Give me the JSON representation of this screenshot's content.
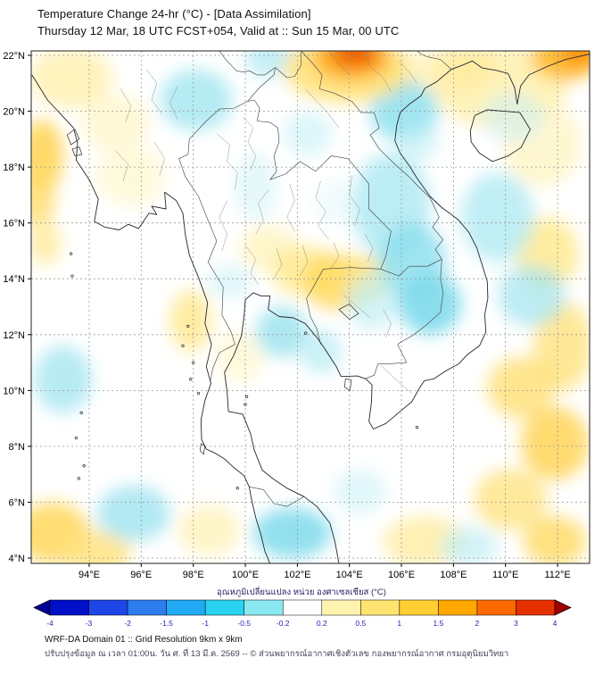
{
  "header": {
    "line1": "Temperature Change 24-hr (°C) - [Data Assimilation]",
    "line2": "Thursday 12 Mar, 18 UTC FCST+054, Valid at :: Sun 15 Mar, 00 UTC"
  },
  "axes": {
    "lat_ticks": [
      {
        "v": 22,
        "label": "22°N"
      },
      {
        "v": 20,
        "label": "20°N"
      },
      {
        "v": 18,
        "label": "18°N"
      },
      {
        "v": 16,
        "label": "16°N"
      },
      {
        "v": 14,
        "label": "14°N"
      },
      {
        "v": 12,
        "label": "12°N"
      },
      {
        "v": 10,
        "label": "10°N"
      },
      {
        "v": 8,
        "label": "8°N"
      },
      {
        "v": 6,
        "label": "6°N"
      },
      {
        "v": 4,
        "label": "4°N"
      }
    ],
    "lon_ticks": [
      {
        "v": 94,
        "label": "94°E"
      },
      {
        "v": 96,
        "label": "96°E"
      },
      {
        "v": 98,
        "label": "98°E"
      },
      {
        "v": 100,
        "label": "100°E"
      },
      {
        "v": 102,
        "label": "102°E"
      },
      {
        "v": 104,
        "label": "104°E"
      },
      {
        "v": 106,
        "label": "106°E"
      },
      {
        "v": 108,
        "label": "108°E"
      },
      {
        "v": 110,
        "label": "110°E"
      },
      {
        "v": 112,
        "label": "112°E"
      }
    ]
  },
  "map": {
    "anomalies": [
      {
        "lon": 93.3,
        "lat": 21.2,
        "rx": 1.6,
        "ry": 1.1,
        "c": "#fff1b3",
        "o": 0.85
      },
      {
        "lon": 95.0,
        "lat": 19.6,
        "rx": 1.3,
        "ry": 1.0,
        "c": "#fff6cc",
        "o": 0.8
      },
      {
        "lon": 109.8,
        "lat": 20.9,
        "rx": 2.6,
        "ry": 1.5,
        "c": "#ffefa8",
        "o": 0.8
      },
      {
        "lon": 111.4,
        "lat": 18.8,
        "rx": 1.5,
        "ry": 1.5,
        "c": "#fff3bb",
        "o": 0.7
      },
      {
        "lon": 108.3,
        "lat": 21.6,
        "rx": 1.3,
        "ry": 0.8,
        "c": "#ffeb9e",
        "o": 0.8
      },
      {
        "lon": 106.6,
        "lat": 21.3,
        "rx": 1.4,
        "ry": 0.8,
        "c": "#fff1b0",
        "o": 0.7
      },
      {
        "lon": 95.6,
        "lat": 17.7,
        "rx": 1.3,
        "ry": 1.1,
        "c": "#fff6cc",
        "o": 0.7
      },
      {
        "lon": 100.9,
        "lat": 15.1,
        "rx": 1.1,
        "ry": 0.8,
        "c": "#fff3b8",
        "o": 0.75
      },
      {
        "lon": 99.8,
        "lat": 11.2,
        "rx": 0.9,
        "ry": 0.9,
        "c": "#fff6cc",
        "o": 0.7
      },
      {
        "lon": 97.9,
        "lat": 12.5,
        "rx": 0.8,
        "ry": 1.1,
        "c": "#ffe98c",
        "o": 0.8
      },
      {
        "lon": 102.3,
        "lat": 14.3,
        "rx": 1.3,
        "ry": 0.9,
        "c": "#ffea8f",
        "o": 0.85
      },
      {
        "lon": 103.6,
        "lat": 13.9,
        "rx": 1.4,
        "ry": 1.0,
        "c": "#ffd95e",
        "o": 0.85
      },
      {
        "lon": 104.7,
        "lat": 14.0,
        "rx": 1.0,
        "ry": 0.8,
        "c": "#ffe47d",
        "o": 0.8
      },
      {
        "lon": 92.2,
        "lat": 18.4,
        "rx": 0.8,
        "ry": 1.3,
        "c": "#ffd24d",
        "o": 0.85
      },
      {
        "lon": 92.0,
        "lat": 16.9,
        "rx": 0.7,
        "ry": 1.0,
        "c": "#ffdc6b",
        "o": 0.8
      },
      {
        "lon": 92.3,
        "lat": 15.3,
        "rx": 0.6,
        "ry": 0.8,
        "c": "#ffe88f",
        "o": 0.75
      },
      {
        "lon": 92.6,
        "lat": 4.9,
        "rx": 1.4,
        "ry": 1.1,
        "c": "#ffd75c",
        "o": 0.85
      },
      {
        "lon": 94.3,
        "lat": 4.2,
        "rx": 1.3,
        "ry": 0.8,
        "c": "#ffe27a",
        "o": 0.8
      },
      {
        "lon": 98.6,
        "lat": 5.0,
        "rx": 1.2,
        "ry": 0.9,
        "c": "#fff1b0",
        "o": 0.7
      },
      {
        "lon": 111.6,
        "lat": 14.9,
        "rx": 1.2,
        "ry": 1.3,
        "c": "#ffe888",
        "o": 0.8
      },
      {
        "lon": 112.2,
        "lat": 11.6,
        "rx": 1.1,
        "ry": 1.6,
        "c": "#ffe27a",
        "o": 0.8
      },
      {
        "lon": 110.6,
        "lat": 10.1,
        "rx": 1.3,
        "ry": 1.1,
        "c": "#ffdf73",
        "o": 0.8
      },
      {
        "lon": 111.9,
        "lat": 8.1,
        "rx": 1.3,
        "ry": 1.3,
        "c": "#ffd24d",
        "o": 0.8
      },
      {
        "lon": 110.2,
        "lat": 6.1,
        "rx": 1.4,
        "ry": 1.1,
        "c": "#ffe483",
        "o": 0.8
      },
      {
        "lon": 111.9,
        "lat": 4.6,
        "rx": 1.2,
        "ry": 0.9,
        "c": "#ffda60",
        "o": 0.8
      },
      {
        "lon": 106.9,
        "lat": 4.6,
        "rx": 1.6,
        "ry": 0.9,
        "c": "#ffeb9a",
        "o": 0.75
      },
      {
        "lon": 98.1,
        "lat": 20.4,
        "rx": 1.4,
        "ry": 1.1,
        "c": "#a8e7f1",
        "o": 0.85
      },
      {
        "lon": 100.9,
        "lat": 21.9,
        "rx": 0.9,
        "ry": 0.7,
        "c": "#b5ebf3",
        "o": 0.8
      },
      {
        "lon": 106.1,
        "lat": 20.0,
        "rx": 1.3,
        "ry": 1.1,
        "c": "#8edfee",
        "o": 0.85
      },
      {
        "lon": 102.4,
        "lat": 19.2,
        "rx": 0.9,
        "ry": 0.8,
        "c": "#cdf2f7",
        "o": 0.7
      },
      {
        "lon": 100.4,
        "lat": 17.3,
        "rx": 0.8,
        "ry": 1.2,
        "c": "#d5f4f8",
        "o": 0.65
      },
      {
        "lon": 105.6,
        "lat": 16.6,
        "rx": 1.5,
        "ry": 1.9,
        "c": "#abe8f2",
        "o": 0.8
      },
      {
        "lon": 106.4,
        "lat": 14.6,
        "rx": 1.3,
        "ry": 1.4,
        "c": "#8edfee",
        "o": 0.85
      },
      {
        "lon": 107.1,
        "lat": 13.1,
        "rx": 1.2,
        "ry": 1.1,
        "c": "#7fdaec",
        "o": 0.9
      },
      {
        "lon": 104.9,
        "lat": 13.2,
        "rx": 1.0,
        "ry": 1.0,
        "c": "#bfeef5",
        "o": 0.7
      },
      {
        "lon": 101.4,
        "lat": 12.1,
        "rx": 1.0,
        "ry": 0.9,
        "c": "#9fe4ef",
        "o": 0.85
      },
      {
        "lon": 102.9,
        "lat": 11.4,
        "rx": 0.8,
        "ry": 0.8,
        "c": "#b5ebf3",
        "o": 0.7
      },
      {
        "lon": 99.4,
        "lat": 13.9,
        "rx": 0.9,
        "ry": 0.6,
        "c": "#cdf2f7",
        "o": 0.6
      },
      {
        "lon": 93.0,
        "lat": 10.4,
        "rx": 1.1,
        "ry": 1.2,
        "c": "#a5e6f0",
        "o": 0.8
      },
      {
        "lon": 95.7,
        "lat": 5.6,
        "rx": 1.4,
        "ry": 1.0,
        "c": "#9fe4ef",
        "o": 0.8
      },
      {
        "lon": 101.8,
        "lat": 4.9,
        "rx": 1.5,
        "ry": 0.9,
        "c": "#7fdaec",
        "o": 0.85
      },
      {
        "lon": 104.4,
        "lat": 6.4,
        "rx": 1.0,
        "ry": 0.8,
        "c": "#cdf2f7",
        "o": 0.6
      },
      {
        "lon": 109.7,
        "lat": 16.2,
        "rx": 1.4,
        "ry": 1.6,
        "c": "#abe8f2",
        "o": 0.75
      },
      {
        "lon": 111.0,
        "lat": 13.4,
        "rx": 1.3,
        "ry": 1.1,
        "c": "#9fe4ef",
        "o": 0.7
      },
      {
        "lon": 110.3,
        "lat": 19.8,
        "rx": 1.2,
        "ry": 0.9,
        "c": "#cdf2f7",
        "o": 0.6
      },
      {
        "lon": 106.6,
        "lat": 18.9,
        "rx": 0.8,
        "ry": 0.7,
        "c": "#bfeef5",
        "o": 0.6
      },
      {
        "lon": 108.6,
        "lat": 4.4,
        "rx": 1.1,
        "ry": 0.7,
        "c": "#bfeef5",
        "o": 0.7
      },
      {
        "lon": 103.5,
        "lat": 16.7,
        "rx": 0.8,
        "ry": 0.8,
        "c": "#dff7fa",
        "o": 0.5
      },
      {
        "lon": 103.9,
        "lat": 21.5,
        "rx": 2.4,
        "ry": 1.2,
        "c": "#ffe27a",
        "o": 0.9
      },
      {
        "lon": 104.1,
        "lat": 21.9,
        "rx": 1.5,
        "ry": 0.8,
        "c": "#ffaf1e",
        "o": 0.95
      },
      {
        "lon": 104.2,
        "lat": 22.1,
        "rx": 0.9,
        "ry": 0.55,
        "c": "#f05a00",
        "o": 0.95
      },
      {
        "lon": 112.3,
        "lat": 21.9,
        "rx": 1.3,
        "ry": 0.8,
        "c": "#ffb928",
        "o": 0.9
      },
      {
        "lon": 112.9,
        "lat": 22.15,
        "rx": 0.8,
        "ry": 0.5,
        "c": "#ff8c00",
        "o": 0.9
      }
    ]
  },
  "colorbar": {
    "title": "อุณหภูมิเปลี่ยนแปลง หน่วย องศาเซลเซียส (°C)",
    "tick_labels": [
      "-4",
      "-3",
      "-2",
      "-1.5",
      "-1",
      "-0.5",
      "-0.2",
      "0.2",
      "0.5",
      "1",
      "1.5",
      "2",
      "3",
      "4"
    ],
    "segment_colors": [
      "#0010c8",
      "#1e46e6",
      "#2e7df0",
      "#21aaf5",
      "#28d2f0",
      "#8ae8f2",
      "#ffffff",
      "#fff3b0",
      "#ffe470",
      "#ffce33",
      "#ffa800",
      "#ff6a00",
      "#e63000"
    ],
    "arrow_left_color": "#000096",
    "arrow_right_color": "#a00000",
    "tick_color": "#2323b8"
  },
  "footer": {
    "line1": "WRF-DA Domain 01 :: Grid Resolution 9km x 9km",
    "line2": "ปรับปรุงข้อมูล ณ เวลา 01:00น. วัน ศ. ที่ 13 มี.ค. 2569 -- © ส่วนพยากรณ์อากาศเชิงตัวเลข กองพยากรณ์อากาศ กรมอุตุนิยมวิทยา"
  }
}
